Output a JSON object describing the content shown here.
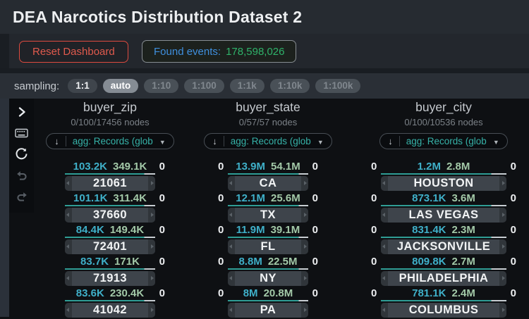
{
  "header": {
    "title": "DEA Narcotics Distribution Dataset 2"
  },
  "toolbar": {
    "reset_label": "Reset Dashboard",
    "found_events_label": "Found events:",
    "found_events_value": "178,598,026"
  },
  "sampling": {
    "label": "sampling:",
    "options": [
      {
        "label": "1:1",
        "state": "active-dark"
      },
      {
        "label": "auto",
        "state": "selected"
      },
      {
        "label": "1:10",
        "state": "disabled"
      },
      {
        "label": "1:100",
        "state": "disabled"
      },
      {
        "label": "1:1k",
        "state": "disabled"
      },
      {
        "label": "1:10k",
        "state": "disabled"
      },
      {
        "label": "1:100k",
        "state": "disabled"
      }
    ]
  },
  "sidebar": {
    "icons": [
      "chevron-right",
      "keyboard",
      "refresh",
      "undo",
      "redo"
    ]
  },
  "columns": [
    {
      "title": "buyer_zip",
      "subtitle": "0/100/17456 nodes",
      "sort_icon": "↓",
      "agg_label": "agg: Records (glob",
      "caret_icon": "▼",
      "rows": [
        {
          "left": "",
          "v1": "103.2K",
          "v2": "349.1K",
          "right": "0",
          "label": "21061"
        },
        {
          "left": "",
          "v1": "101.1K",
          "v2": "311.4K",
          "right": "0",
          "label": "37660"
        },
        {
          "left": "",
          "v1": "84.4K",
          "v2": "149.4K",
          "right": "0",
          "label": "72401"
        },
        {
          "left": "",
          "v1": "83.7K",
          "v2": "171K",
          "right": "0",
          "label": "71913"
        },
        {
          "left": "",
          "v1": "83.6K",
          "v2": "230.4K",
          "right": "0",
          "label": "41042"
        }
      ]
    },
    {
      "title": "buyer_state",
      "subtitle": "0/57/57 nodes",
      "sort_icon": "↓",
      "agg_label": "agg: Records (glob",
      "caret_icon": "▼",
      "rows": [
        {
          "left": "0",
          "v1": "13.9M",
          "v2": "54.1M",
          "right": "0",
          "label": "CA"
        },
        {
          "left": "0",
          "v1": "12.1M",
          "v2": "25.6M",
          "right": "0",
          "label": "TX"
        },
        {
          "left": "0",
          "v1": "11.9M",
          "v2": "39.1M",
          "right": "0",
          "label": "FL"
        },
        {
          "left": "0",
          "v1": "8.8M",
          "v2": "22.5M",
          "right": "0",
          "label": "NY"
        },
        {
          "left": "0",
          "v1": "8M",
          "v2": "20.8M",
          "right": "0",
          "label": "PA"
        }
      ]
    },
    {
      "title": "buyer_city",
      "subtitle": "0/100/10536 nodes",
      "sort_icon": "↓",
      "agg_label": "agg: Records (glob",
      "caret_icon": "▼",
      "rows": [
        {
          "left": "0",
          "v1": "1.2M",
          "v2": "2.8M",
          "right": "0",
          "label": "HOUSTON"
        },
        {
          "left": "0",
          "v1": "873.1K",
          "v2": "3.6M",
          "right": "0",
          "label": "LAS VEGAS"
        },
        {
          "left": "0",
          "v1": "831.4K",
          "v2": "2.3M",
          "right": "0",
          "label": "JACKSONVILLE"
        },
        {
          "left": "0",
          "v1": "809.8K",
          "v2": "2.7M",
          "right": "0",
          "label": "PHILADELPHIA"
        },
        {
          "left": "0",
          "v1": "781.1K",
          "v2": "2.4M",
          "right": "0",
          "label": "COLUMBUS"
        }
      ]
    }
  ],
  "colors": {
    "accent_teal": "#2f9d95",
    "value_cyan": "#3fb0c9",
    "value_green": "#a3c9a8",
    "found_label_blue": "#3f8fdd",
    "found_value_green": "#2fb36a",
    "reset_red": "#dd4a3f",
    "agg_teal": "#36b2a8"
  }
}
